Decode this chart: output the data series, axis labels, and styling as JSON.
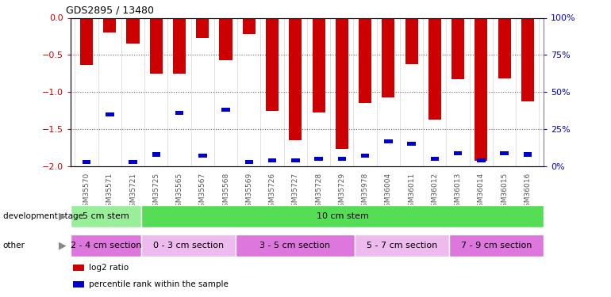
{
  "title": "GDS2895 / 13480",
  "samples": [
    "GSM35570",
    "GSM35571",
    "GSM35721",
    "GSM35725",
    "GSM35565",
    "GSM35567",
    "GSM35568",
    "GSM35569",
    "GSM35726",
    "GSM35727",
    "GSM35728",
    "GSM35729",
    "GSM35978",
    "GSM36004",
    "GSM36011",
    "GSM36012",
    "GSM36013",
    "GSM36014",
    "GSM36015",
    "GSM36016"
  ],
  "log2_ratio": [
    -0.63,
    -0.2,
    -0.35,
    -0.75,
    -0.75,
    -0.27,
    -0.57,
    -0.22,
    -1.25,
    -1.65,
    -1.27,
    -1.77,
    -1.15,
    -1.07,
    -0.62,
    -1.37,
    -0.83,
    -1.92,
    -0.82,
    -1.12
  ],
  "pct_rank": [
    3,
    35,
    3,
    8,
    36,
    7,
    38,
    3,
    4,
    4,
    5,
    5,
    7,
    17,
    15,
    5,
    9,
    4,
    9,
    8
  ],
  "bar_color": "#cc0000",
  "pct_color": "#0000cc",
  "ylim_left": [
    -2.0,
    0.0
  ],
  "ylim_right": [
    0,
    100
  ],
  "yticks_left": [
    0.0,
    -0.5,
    -1.0,
    -1.5,
    -2.0
  ],
  "yticks_right": [
    0,
    25,
    50,
    75,
    100
  ],
  "dev_stage_groups": [
    {
      "label": "5 cm stem",
      "start": 0,
      "end": 3,
      "color": "#99ee99"
    },
    {
      "label": "10 cm stem",
      "start": 3,
      "end": 20,
      "color": "#55dd55"
    }
  ],
  "other_groups": [
    {
      "label": "2 - 4 cm section",
      "start": 0,
      "end": 3,
      "color": "#dd77dd"
    },
    {
      "label": "0 - 3 cm section",
      "start": 3,
      "end": 7,
      "color": "#eebbee"
    },
    {
      "label": "3 - 5 cm section",
      "start": 7,
      "end": 12,
      "color": "#dd77dd"
    },
    {
      "label": "5 - 7 cm section",
      "start": 12,
      "end": 16,
      "color": "#eebbee"
    },
    {
      "label": "7 - 9 cm section",
      "start": 16,
      "end": 20,
      "color": "#dd77dd"
    }
  ],
  "legend_items": [
    {
      "label": "log2 ratio",
      "color": "#cc0000"
    },
    {
      "label": "percentile rank within the sample",
      "color": "#0000cc"
    }
  ],
  "bar_width": 0.55,
  "figsize": [
    7.7,
    3.75
  ],
  "dpi": 100,
  "left_yaxis_color": "#cc0000",
  "right_yaxis_color": "#0000cc",
  "spine_color": "#888888",
  "grid_color": "black",
  "xtick_color": "#555555"
}
